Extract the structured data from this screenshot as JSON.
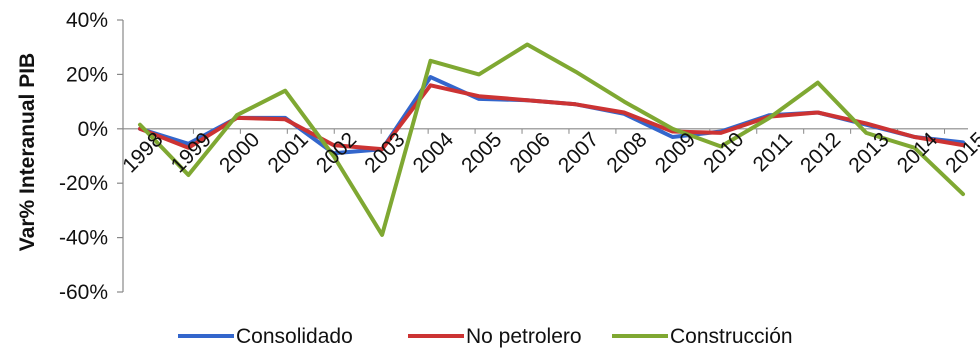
{
  "chart_data": {
    "type": "line",
    "title": "",
    "xlabel": "",
    "ylabel": "Var% Interanual PIB",
    "x": [
      "1998",
      "1999",
      "2000",
      "2001",
      "2002",
      "2003",
      "2004",
      "2005",
      "2006",
      "2007",
      "2008",
      "2009",
      "2010",
      "2011",
      "2012",
      "2013",
      "2014",
      "2015"
    ],
    "ylim": [
      -60,
      40
    ],
    "yticks": [
      -60,
      -40,
      -20,
      0,
      20,
      40
    ],
    "ytick_labels": [
      "-60%",
      "-40%",
      "-20%",
      "0%",
      "20%",
      "40%"
    ],
    "grid": false,
    "legend": "bottom",
    "series": [
      {
        "name": "Consolidado",
        "color": "#3366cc",
        "values": [
          0,
          -5.5,
          4,
          4,
          -9,
          -7.5,
          19,
          11,
          10.5,
          9,
          5.5,
          -3,
          -1,
          5,
          6,
          1.5,
          -3,
          -5
        ]
      },
      {
        "name": "No petrolero",
        "color": "#cc3333",
        "values": [
          0,
          -7,
          4,
          3.5,
          -6,
          -7.5,
          16,
          12,
          10.5,
          9,
          6,
          -1,
          -1.5,
          4.5,
          6,
          2,
          -3,
          -6
        ]
      },
      {
        "name": "Construcción",
        "color": "#7fa832",
        "values": [
          1.5,
          -17,
          5,
          14,
          -10,
          -39,
          25,
          20,
          31,
          21,
          10,
          0,
          -6.5,
          4,
          17,
          -1.5,
          -7,
          -24
        ]
      }
    ]
  }
}
